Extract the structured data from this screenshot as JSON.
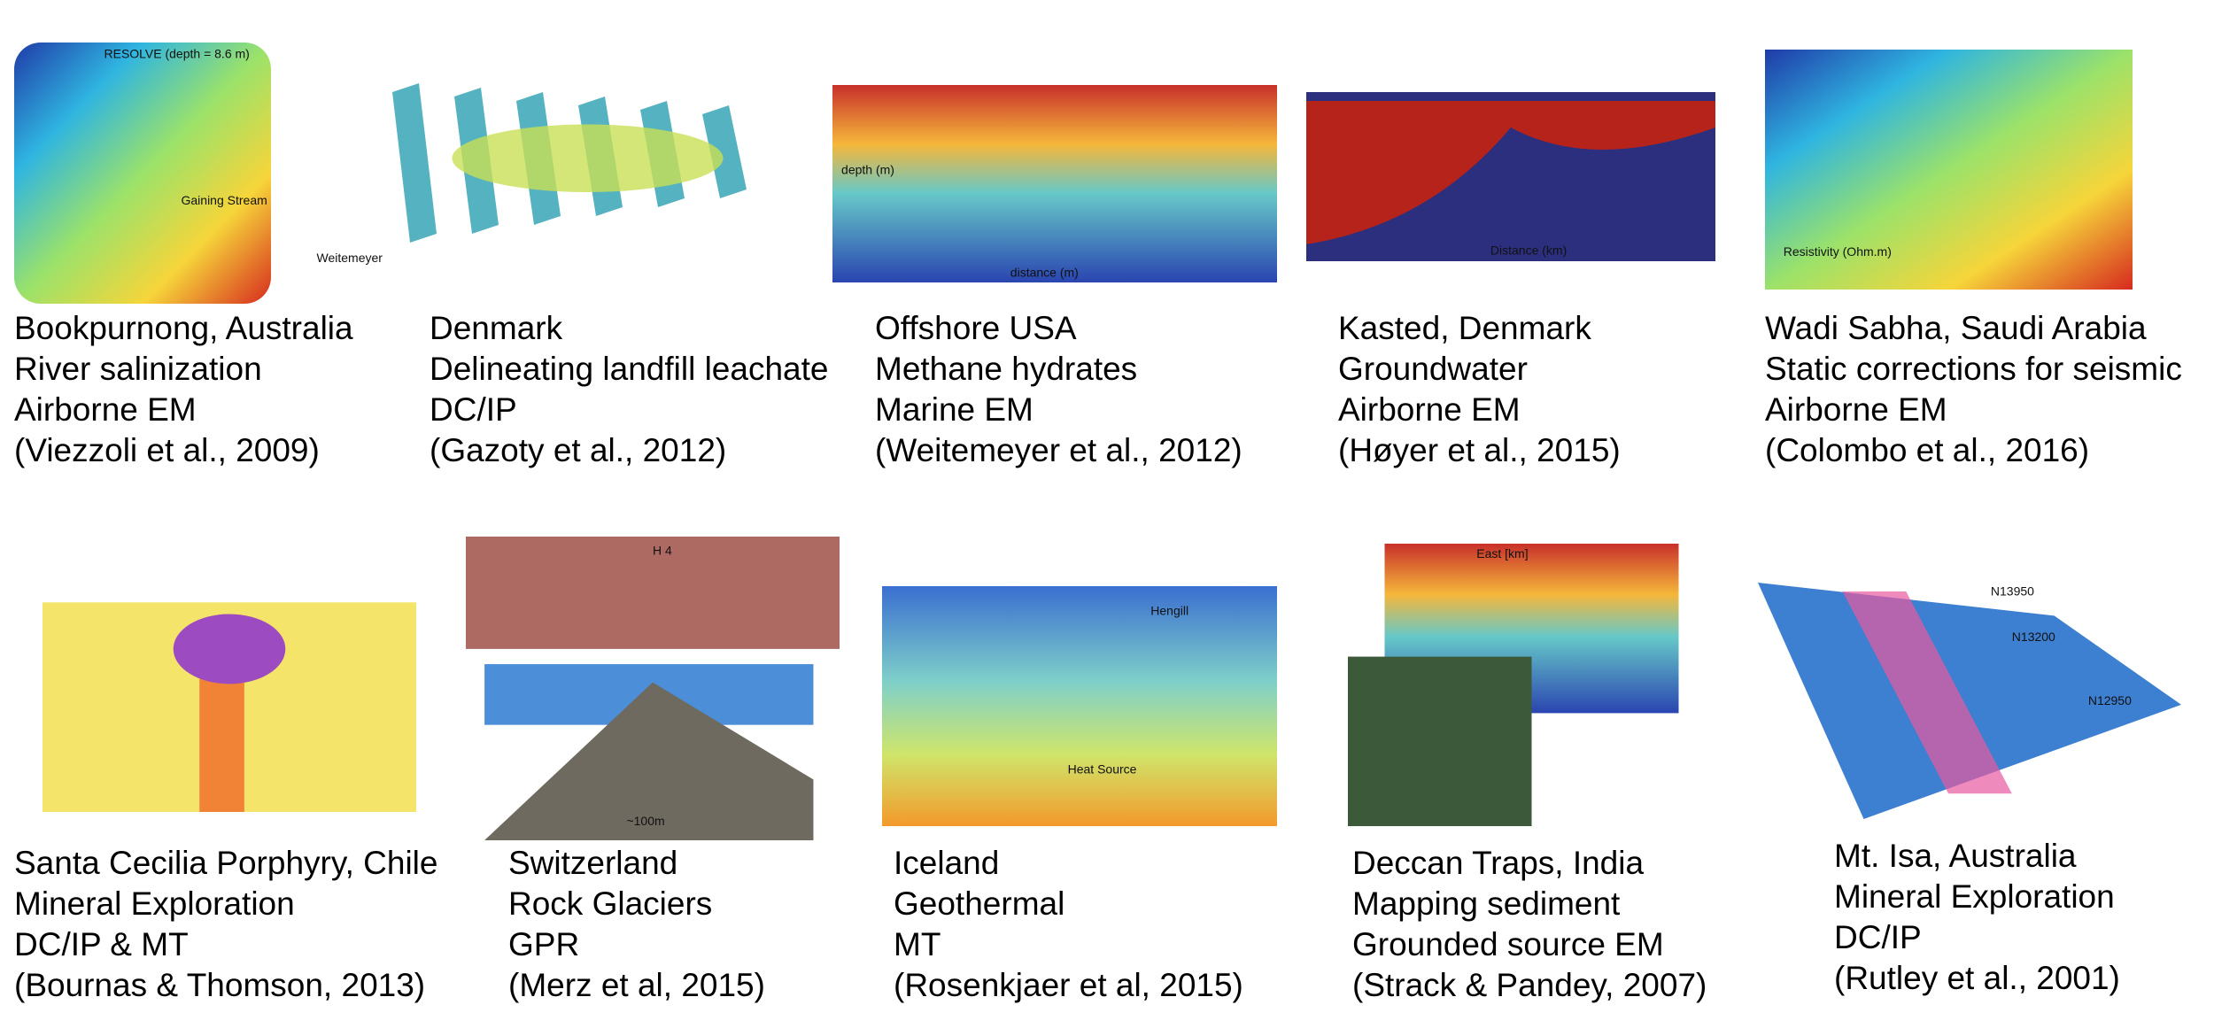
{
  "panels": [
    {
      "caption": [
        "Bookpurnong, Australia",
        "River salinization",
        "Airborne EM",
        "(Viezzoli et al., 2009)"
      ],
      "labels": [
        "RESOLVE (depth = 8.6 m)",
        "Gaining Stream"
      ]
    },
    {
      "caption": [
        "Denmark",
        "Delineating landfill leachate",
        "DC/IP",
        "(Gazoty et al., 2012)"
      ],
      "labels": [
        "Weitemeyer"
      ]
    },
    {
      "caption": [
        "Offshore USA",
        "Methane hydrates",
        "Marine EM",
        "(Weitemeyer et al., 2012)"
      ],
      "labels": [
        "distance (m)",
        "depth (m)"
      ]
    },
    {
      "caption": [
        "Kasted, Denmark",
        "Groundwater",
        "Airborne EM",
        "(Høyer et al., 2015)"
      ],
      "labels": [
        "Distance (km)"
      ]
    },
    {
      "caption": [
        "Wadi Sabha, Saudi Arabia",
        "Static corrections for seismic",
        "Airborne EM",
        "(Colombo et al., 2016)"
      ],
      "labels": [
        "Resistivity (Ohm.m)"
      ]
    },
    {
      "caption": [
        "Santa Cecilia Porphyry, Chile",
        "Mineral Exploration",
        "DC/IP & MT",
        "(Bournas & Thomson, 2013)"
      ],
      "labels": []
    },
    {
      "caption": [
        "Switzerland",
        "Rock Glaciers",
        "GPR",
        "(Merz et al, 2015)"
      ],
      "labels": [
        "H 4",
        "~100m"
      ]
    },
    {
      "caption": [
        "Iceland",
        "Geothermal",
        "MT",
        "(Rosenkjaer et al, 2015)"
      ],
      "labels": [
        "Hengill",
        "Heat Source"
      ]
    },
    {
      "caption": [
        "Deccan Traps, India",
        "Mapping sediment",
        "Grounded source EM",
        "(Strack & Pandey, 2007)"
      ],
      "labels": [
        "East [km]"
      ]
    },
    {
      "caption": [
        "Mt. Isa, Australia",
        "Mineral Exploration",
        "DC/IP",
        "(Rutley et al., 2001)"
      ],
      "labels": [
        "N13950",
        "N13200",
        "N12950"
      ]
    }
  ]
}
